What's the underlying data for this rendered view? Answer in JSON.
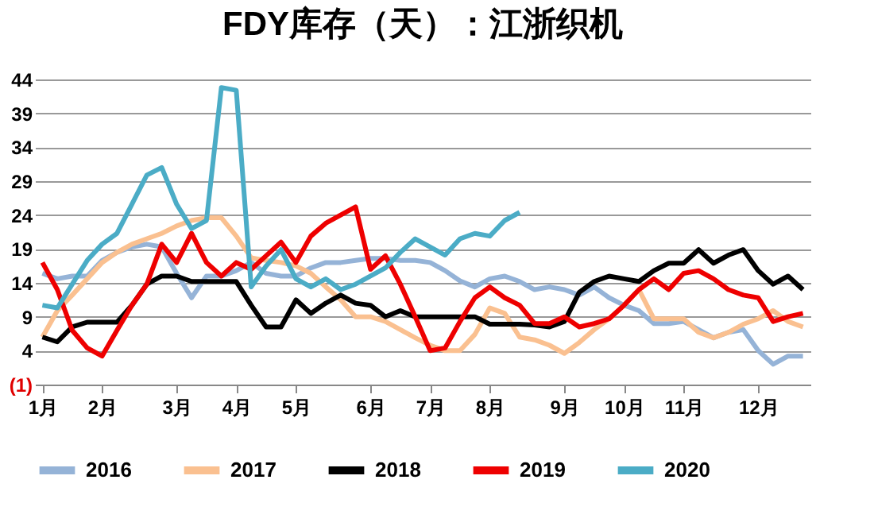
{
  "chart_data": {
    "type": "line",
    "title": "FDY库存（天）：江浙织机",
    "categories": [
      "1月",
      null,
      null,
      null,
      "2月",
      null,
      null,
      null,
      null,
      "3月",
      null,
      null,
      null,
      "4月",
      null,
      null,
      null,
      "5月",
      null,
      null,
      null,
      null,
      "6月",
      null,
      null,
      null,
      "7月",
      null,
      null,
      null,
      "8月",
      null,
      null,
      null,
      null,
      "9月",
      null,
      null,
      null,
      "10月",
      null,
      null,
      null,
      "11月",
      null,
      null,
      null,
      null,
      "12月",
      null,
      null,
      null
    ],
    "series": [
      {
        "name": "2016",
        "color": "#95b3d7",
        "values": [
          15.4,
          14.6,
          15,
          15,
          17.3,
          18.5,
          19.3,
          19.7,
          19.3,
          15.4,
          11.8,
          15,
          15,
          15.8,
          17,
          15.4,
          15,
          15,
          16.2,
          17,
          17,
          17.3,
          17.6,
          17.6,
          17.3,
          17.3,
          17,
          15.8,
          14.3,
          13.4,
          14.6,
          15,
          14.2,
          13,
          13.4,
          13,
          12.2,
          13.4,
          11.8,
          10.7,
          9.9,
          8,
          8,
          8.3,
          7.1,
          5.9,
          6.7,
          7.1,
          4,
          2,
          3.2,
          3.2
        ]
      },
      {
        "name": "2017",
        "color": "#fac090",
        "values": [
          6,
          9.9,
          12.2,
          14.6,
          17,
          18.5,
          19.7,
          20.5,
          21.3,
          22.4,
          23.2,
          23.6,
          23.6,
          20.9,
          17.7,
          17.3,
          17,
          16.5,
          15.4,
          13.4,
          11.5,
          9,
          9,
          8.3,
          7.1,
          5.9,
          4.8,
          4,
          4,
          6.4,
          10.3,
          9.5,
          6,
          5.6,
          4.8,
          3.6,
          5.2,
          7.1,
          8.7,
          10.7,
          13,
          8.7,
          8.7,
          8.7,
          6.7,
          5.9,
          6.7,
          7.9,
          8.7,
          9.9,
          8.3,
          7.5
        ]
      },
      {
        "name": "2018",
        "color": "#000000",
        "values": [
          6,
          5.3,
          7.5,
          8.2,
          8.2,
          8.2,
          10.7,
          13.8,
          15,
          15,
          14.2,
          14.2,
          14.2,
          14.2,
          10.7,
          7.5,
          7.5,
          11.5,
          9.5,
          11,
          12.2,
          11,
          10.7,
          9,
          9.9,
          9,
          9,
          9,
          9,
          9,
          7.9,
          7.9,
          7.9,
          7.8,
          7.5,
          8.3,
          12.6,
          14.2,
          15,
          14.6,
          14.2,
          15.8,
          16.9,
          16.9,
          18.9,
          16.9,
          18.1,
          18.9,
          15.8,
          13.8,
          15,
          13
        ]
      },
      {
        "name": "2019",
        "color": "#ee0000",
        "values": [
          17,
          13,
          7,
          4.4,
          3.2,
          7,
          10.7,
          13.8,
          19.7,
          17,
          21.3,
          17,
          15,
          17,
          16,
          18,
          20,
          17,
          20.9,
          22.8,
          24,
          25.2,
          16,
          18,
          13.8,
          9,
          4,
          4.4,
          8.3,
          11.8,
          13.4,
          11.8,
          10.7,
          8,
          8,
          9,
          7.5,
          8,
          8.7,
          10.7,
          13,
          14.6,
          13,
          15.4,
          15.8,
          14.6,
          13,
          12.2,
          11.8,
          8.3,
          9,
          9.5
        ]
      },
      {
        "name": "2020",
        "color": "#4bacc6",
        "values": [
          10.7,
          10.3,
          13.8,
          17.3,
          19.7,
          21.3,
          25.6,
          29.9,
          31,
          25.6,
          22,
          23.2,
          42.8,
          42.4,
          13.4,
          16.5,
          18.9,
          14.6,
          13.4,
          14.6,
          13,
          13.8,
          15,
          16.2,
          18.5,
          20.5,
          19.3,
          18.1,
          20.5,
          21.3,
          20.9,
          23.2,
          24.4,
          null,
          null,
          null,
          null,
          null,
          null,
          null,
          null,
          null,
          null,
          null,
          null,
          null,
          null,
          null,
          null,
          null,
          null,
          null
        ]
      }
    ],
    "ylim": [
      -1,
      44
    ],
    "yticks": [
      {
        "value": -1,
        "label": "(1)"
      },
      4,
      9,
      14,
      19,
      24,
      29,
      34,
      39,
      44
    ],
    "grid": "y",
    "legend": "bottom",
    "marker": "none",
    "line_style": "solid"
  }
}
